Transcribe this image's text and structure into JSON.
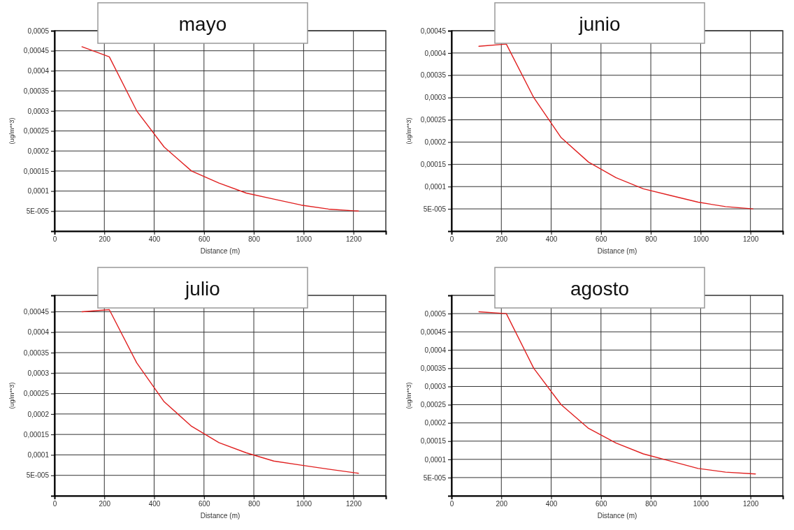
{
  "chart_data": [
    {
      "type": "line",
      "title": "mayo",
      "xlabel": "Distance (m)",
      "ylabel": "(ug/m**3)",
      "grid": true,
      "xlim": [
        0,
        1330
      ],
      "xticks": [
        0,
        200,
        400,
        600,
        800,
        1000,
        1200
      ],
      "ylim": [
        0,
        0.0005
      ],
      "yticks": [
        {
          "value": 5e-05,
          "label": "5E-005"
        },
        {
          "value": 0.0001,
          "label": "0,0001"
        },
        {
          "value": 0.00015,
          "label": "0,00015"
        },
        {
          "value": 0.0002,
          "label": "0,0002"
        },
        {
          "value": 0.00025,
          "label": "0,00025"
        },
        {
          "value": 0.0003,
          "label": "0,0003"
        },
        {
          "value": 0.00035,
          "label": "0,00035"
        },
        {
          "value": 0.0004,
          "label": "0,0004"
        },
        {
          "value": 0.00045,
          "label": "0,00045"
        },
        {
          "value": 0.0005,
          "label": "0,0005"
        }
      ],
      "x": [
        110,
        220,
        330,
        440,
        550,
        660,
        770,
        880,
        990,
        1100,
        1220
      ],
      "series": [
        {
          "color": "#e02020",
          "values": [
            0.00046,
            0.000435,
            0.0003,
            0.00021,
            0.00015,
            0.00012,
            9.5e-05,
            8e-05,
            6.5e-05,
            5.5e-05,
            5e-05
          ]
        }
      ]
    },
    {
      "type": "line",
      "title": "junio",
      "xlabel": "Distance (m)",
      "ylabel": "(ug/m**3)",
      "grid": true,
      "xlim": [
        0,
        1330
      ],
      "xticks": [
        0,
        200,
        400,
        600,
        800,
        1000,
        1200
      ],
      "ylim": [
        0,
        0.00045
      ],
      "yticks": [
        {
          "value": 5e-05,
          "label": "5E-005"
        },
        {
          "value": 0.0001,
          "label": "0,0001"
        },
        {
          "value": 0.00015,
          "label": "0,00015"
        },
        {
          "value": 0.0002,
          "label": "0,0002"
        },
        {
          "value": 0.00025,
          "label": "0,00025"
        },
        {
          "value": 0.0003,
          "label": "0,0003"
        },
        {
          "value": 0.00035,
          "label": "0,00035"
        },
        {
          "value": 0.0004,
          "label": "0,0004"
        },
        {
          "value": 0.00045,
          "label": "0,00045"
        }
      ],
      "x": [
        110,
        220,
        330,
        440,
        550,
        660,
        770,
        880,
        990,
        1100,
        1210
      ],
      "series": [
        {
          "color": "#e02020",
          "values": [
            0.000415,
            0.00042,
            0.0003,
            0.00021,
            0.000155,
            0.00012,
            9.5e-05,
            8e-05,
            6.5e-05,
            5.5e-05,
            5e-05
          ]
        }
      ]
    },
    {
      "type": "line",
      "title": "julio",
      "xlabel": "Distance (m)",
      "ylabel": "(ug/m**3)",
      "grid": true,
      "xlim": [
        0,
        1330
      ],
      "xticks": [
        0,
        200,
        400,
        600,
        800,
        1000,
        1200
      ],
      "ylim": [
        0,
        0.00049
      ],
      "yticks": [
        {
          "value": 5e-05,
          "label": "5E-005"
        },
        {
          "value": 0.0001,
          "label": "0,0001"
        },
        {
          "value": 0.00015,
          "label": "0,00015"
        },
        {
          "value": 0.0002,
          "label": "0,0002"
        },
        {
          "value": 0.00025,
          "label": "0,00025"
        },
        {
          "value": 0.0003,
          "label": "0,0003"
        },
        {
          "value": 0.00035,
          "label": "0,00035"
        },
        {
          "value": 0.0004,
          "label": "0,0004"
        },
        {
          "value": 0.00045,
          "label": "0,00045"
        }
      ],
      "x": [
        110,
        220,
        330,
        440,
        550,
        660,
        770,
        880,
        990,
        1100,
        1220
      ],
      "series": [
        {
          "color": "#e02020",
          "values": [
            0.00045,
            0.000455,
            0.000325,
            0.00023,
            0.00017,
            0.00013,
            0.000105,
            8.5e-05,
            7.5e-05,
            6.5e-05,
            5.5e-05
          ]
        }
      ]
    },
    {
      "type": "line",
      "title": "agosto",
      "xlabel": "Distance (m)",
      "ylabel": "(ug/m**3)",
      "grid": true,
      "xlim": [
        0,
        1330
      ],
      "xticks": [
        0,
        200,
        400,
        600,
        800,
        1000,
        1200
      ],
      "ylim": [
        0,
        0.00055
      ],
      "yticks": [
        {
          "value": 5e-05,
          "label": "5E-005"
        },
        {
          "value": 0.0001,
          "label": "0,0001"
        },
        {
          "value": 0.00015,
          "label": "0,00015"
        },
        {
          "value": 0.0002,
          "label": "0,0002"
        },
        {
          "value": 0.00025,
          "label": "0,00025"
        },
        {
          "value": 0.0003,
          "label": "0,0003"
        },
        {
          "value": 0.00035,
          "label": "0,00035"
        },
        {
          "value": 0.0004,
          "label": "0,0004"
        },
        {
          "value": 0.00045,
          "label": "0,00045"
        },
        {
          "value": 0.0005,
          "label": "0,0005"
        }
      ],
      "x": [
        110,
        220,
        330,
        440,
        550,
        660,
        770,
        880,
        990,
        1100,
        1220
      ],
      "series": [
        {
          "color": "#e02020",
          "values": [
            0.000505,
            0.0005,
            0.00035,
            0.00025,
            0.000185,
            0.000145,
            0.000115,
            9.5e-05,
            7.5e-05,
            6.5e-05,
            6e-05
          ]
        }
      ]
    }
  ]
}
